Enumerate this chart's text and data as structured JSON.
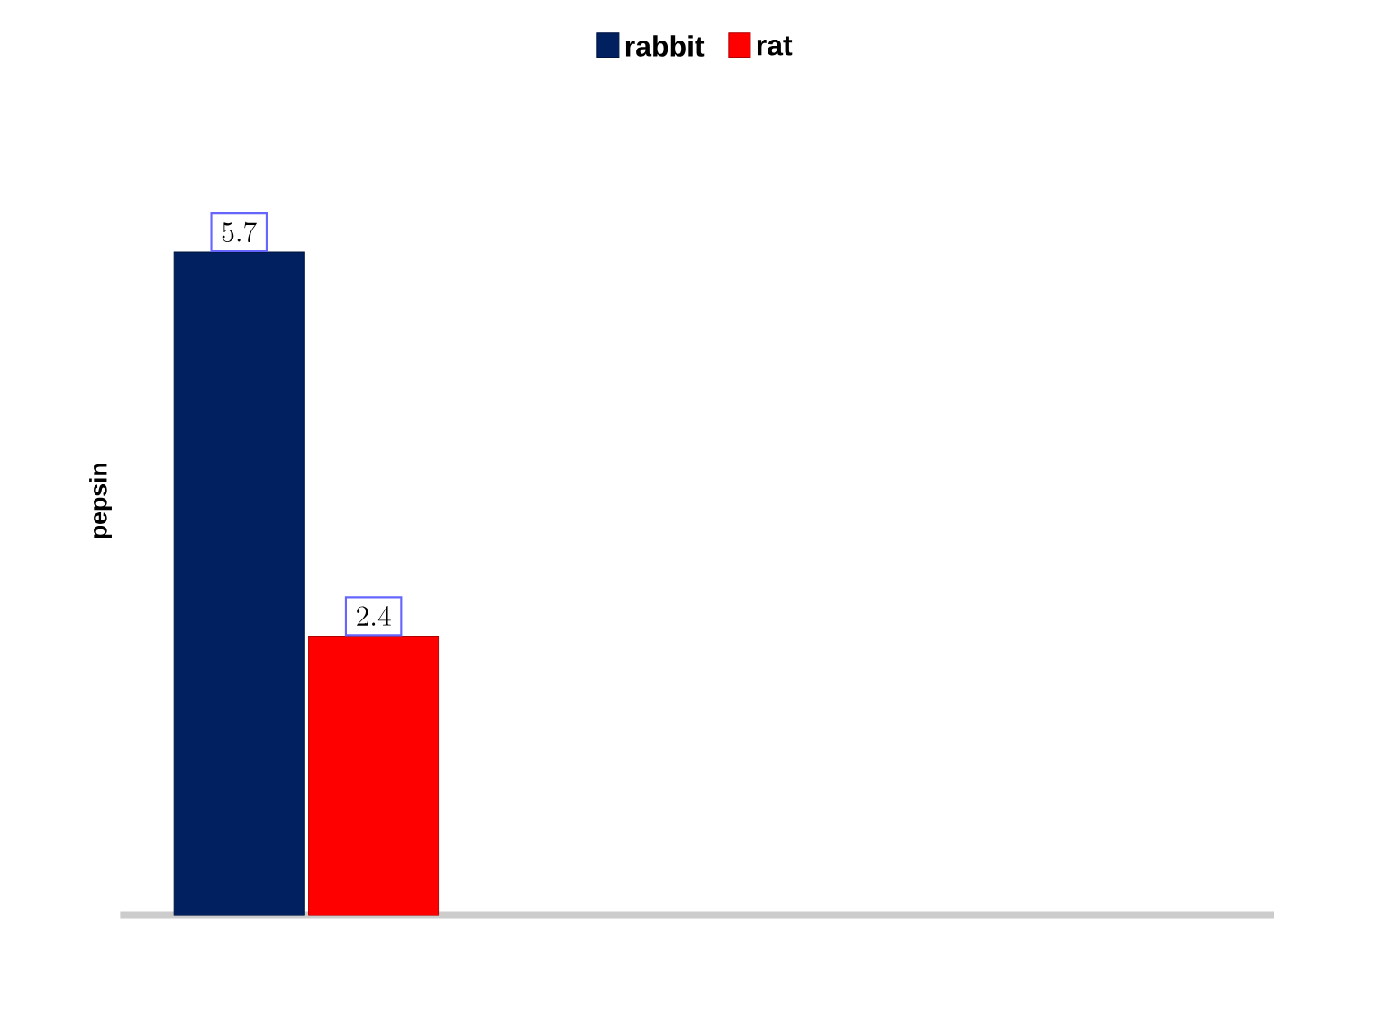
{
  "chart_data": {
    "type": "bar",
    "ylabel": "pepsin",
    "categories": [
      null
    ],
    "series": [
      {
        "name": "rabbit",
        "color": "#002060",
        "values": [
          5.7
        ]
      },
      {
        "name": "rat",
        "color": "#ff0000",
        "values": [
          2.4
        ]
      }
    ],
    "data_labels": true,
    "legend": "top"
  }
}
